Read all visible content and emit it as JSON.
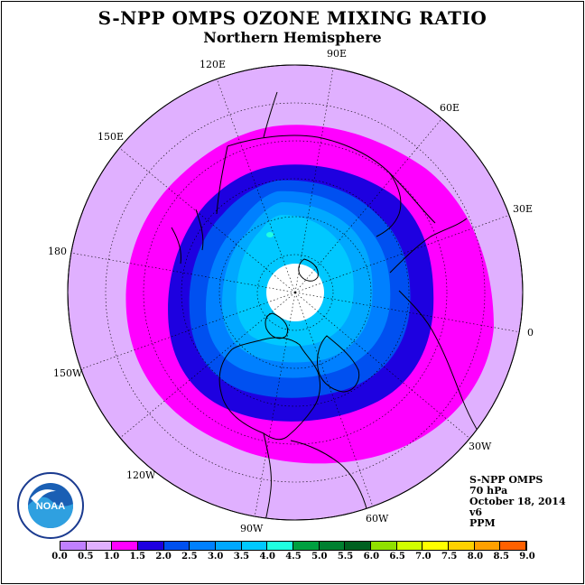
{
  "header": {
    "title": "S-NPP OMPS OZONE MIXING RATIO",
    "subtitle": "Northern Hemisphere"
  },
  "map": {
    "longitude_labels": [
      "90E",
      "60E",
      "30E",
      "0",
      "30W",
      "60W",
      "90W",
      "120W",
      "150W",
      "180",
      "150E",
      "120E"
    ],
    "background_color": "#e0b0ff",
    "land_outline_color": "#000000"
  },
  "info": {
    "instrument": "S-NPP OMPS",
    "pressure": "70 hPa",
    "date": "October 18, 2014",
    "version": "v6",
    "units": "PPM"
  },
  "logo": {
    "icon": "noaa-logo-icon",
    "text": "NOAA"
  },
  "colorbar": {
    "colors": [
      "#c080ff",
      "#e0b0ff",
      "#ff00ff",
      "#1e00e0",
      "#0050f0",
      "#0080ff",
      "#00a8ff",
      "#00c8ff",
      "#20ffe0",
      "#00a040",
      "#008030",
      "#006020",
      "#90e000",
      "#d0ff00",
      "#ffff00",
      "#ffd000",
      "#ffa000",
      "#ff6000",
      "#ff0000",
      "#c00000",
      "#805030"
    ],
    "ticks": [
      "0.0",
      "0.5",
      "1.0",
      "1.5",
      "2.0",
      "2.5",
      "3.0",
      "3.5",
      "4.0",
      "4.5",
      "5.0",
      "5.5",
      "6.0",
      "6.5",
      "7.0",
      "7.5",
      "8.0",
      "8.5",
      "9.0"
    ]
  }
}
